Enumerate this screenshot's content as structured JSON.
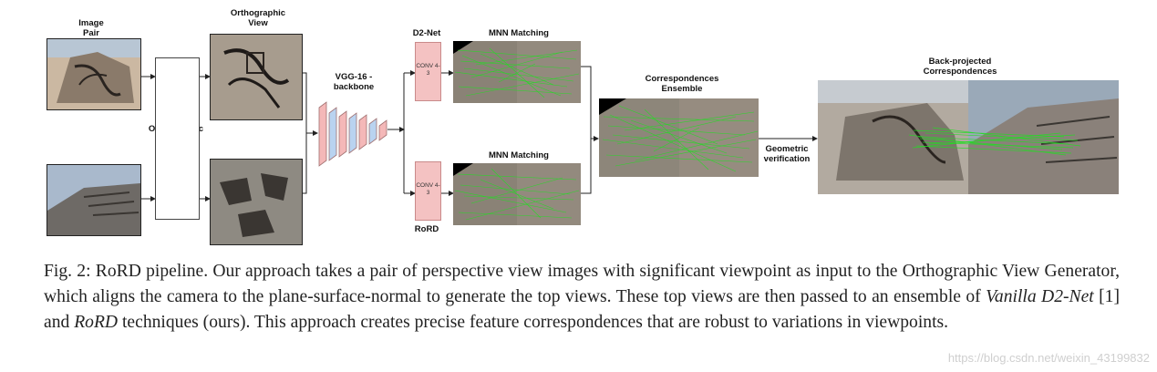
{
  "figure": {
    "labels": {
      "image_pair": "Image\nPair",
      "orthographic_view": "Orthographic\nView",
      "orthographic_view_generator": "Orthographic\nView\nGenerator",
      "vgg_backbone": "VGG-16 -\nbackbone",
      "d2net": "D2-Net",
      "rord": "RoRD",
      "mnn_matching_top": "MNN Matching",
      "mnn_matching_bottom": "MNN Matching",
      "correspondences_ensemble": "Correspondences\nEnsemble",
      "geometric_verification": "Geometric\nverification",
      "back_projected": "Back-projected\nCorrespondences",
      "conv_top": "CONV\n4-3",
      "conv_bottom": "CONV\n4-3"
    },
    "colors": {
      "match_lines": "#22dd22",
      "vgg_pink": "#f4b8b8",
      "vgg_blue": "#b9d3f0",
      "conv_fill": "#f4c2c2"
    }
  },
  "caption": {
    "prefix": "Fig. 2: RoRD pipeline. Our approach takes a pair of perspective view images with significant viewpoint as input to the Orthographic View Generator, which aligns the camera to the plane-surface-normal to generate the top views. These top views are then passed to an ensemble of ",
    "em1": "Vanilla D2-Net",
    "mid": " [1] and ",
    "em2": "RoRD",
    "suffix": " techniques (ours). This approach creates precise feature correspondences that are robust to variations in viewpoints."
  },
  "watermark": "https://blog.csdn.net/weixin_43199832"
}
